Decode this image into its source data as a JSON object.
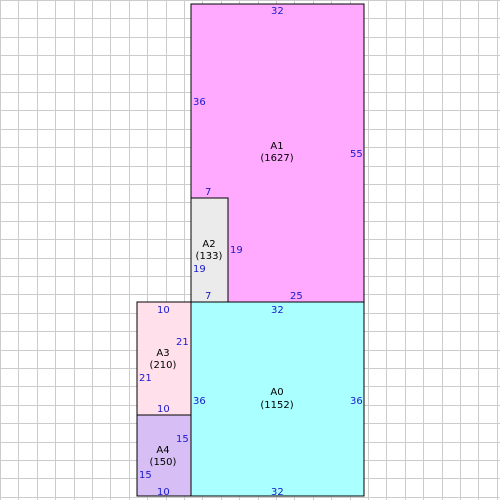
{
  "colors": {
    "background": "#ffffff",
    "grid": "#cccccc",
    "outline": "#000000",
    "dimension_text": "#1a1acc",
    "label_text": "#000000"
  },
  "rooms": [
    {
      "id": "A1",
      "area": "(1627)",
      "fill": "#ffaaff"
    },
    {
      "id": "A2",
      "area": "(133)",
      "fill": "#ebebeb"
    },
    {
      "id": "A0",
      "area": "(1152)",
      "fill": "#aaffff"
    },
    {
      "id": "A3",
      "area": "(210)",
      "fill": "#ffe0eb"
    },
    {
      "id": "A4",
      "area": "(150)",
      "fill": "#d7bff5"
    }
  ],
  "dimensions": {
    "a1_top": "32",
    "a1_left": "36",
    "a1_right": "55",
    "a1_notch_top": "7",
    "a1_notch_side": "19",
    "a1_bottom": "25",
    "a2_left": "19",
    "a2_bottom": "7",
    "a0_top": "32",
    "a0_left": "36",
    "a0_right": "36",
    "a0_bottom": "32",
    "a3_top": "10",
    "a3_right": "21",
    "a3_left": "21",
    "a3_bottom": "10",
    "a4_right": "15",
    "a4_left": "15",
    "a4_bottom": "10"
  }
}
